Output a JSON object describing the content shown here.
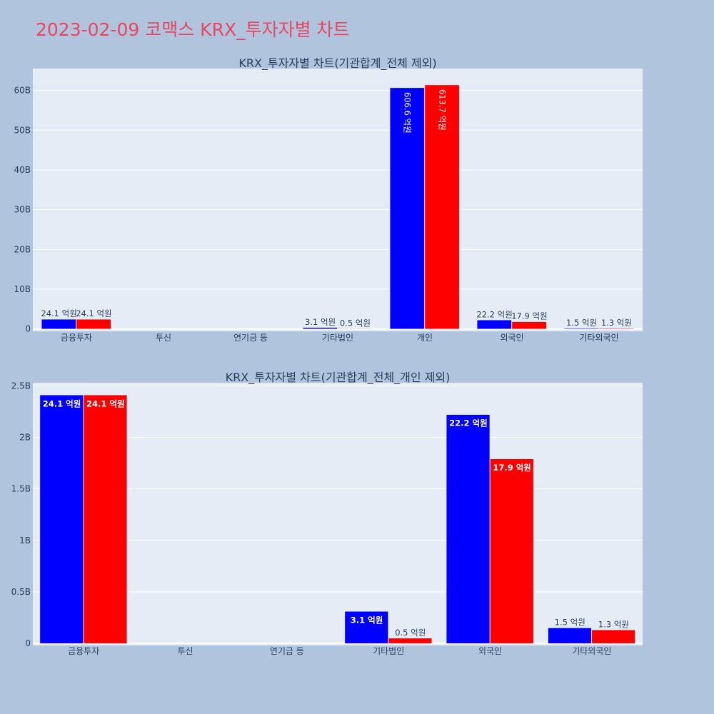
{
  "header": {
    "title": "2023-02-09 코맥스 KRX_투자자별 차트"
  },
  "colors": {
    "background": "#b0c4de",
    "plot_bg": "#e5ecf6",
    "series_a": "#0000ff",
    "series_b": "#ff0000",
    "title": "#e8485f"
  },
  "chart_data": [
    {
      "type": "bar",
      "title": "KRX_투자자별 차트(기관합계_전체 제외)",
      "categories": [
        "금융투자",
        "투신",
        "연기금 등",
        "기타법인",
        "개인",
        "외국인",
        "기타외국인"
      ],
      "ylim": [
        -0.6,
        65.5
      ],
      "yticks": [
        0,
        10,
        20,
        30,
        40,
        50,
        60
      ],
      "ytick_labels": [
        "0",
        "10B",
        "20B",
        "30B",
        "40B",
        "50B",
        "60B"
      ],
      "grid": true,
      "series": [
        {
          "color": "#0000ff",
          "values": [
            2.41,
            0,
            0,
            0.31,
            60.66,
            2.22,
            0.15
          ],
          "labels": [
            "24.1 억원",
            "",
            "",
            "3.1 억원",
            "606.6 억원",
            "22.2 억원",
            "1.5 억원"
          ]
        },
        {
          "color": "#ff0000",
          "values": [
            2.41,
            0,
            0,
            0.05,
            61.37,
            1.79,
            0.13
          ],
          "labels": [
            "24.1 억원",
            "",
            "",
            "0.5 억원",
            "613.7 억원",
            "17.9 억원",
            "1.3 억원"
          ]
        }
      ]
    },
    {
      "type": "bar",
      "title": "KRX_투자자별 차트(기관합계_전체_개인 제외)",
      "categories": [
        "금융투자",
        "투신",
        "연기금 등",
        "기타법인",
        "외국인",
        "기타외국인"
      ],
      "ylim": [
        -0.02,
        2.53
      ],
      "yticks": [
        0,
        0.5,
        1,
        1.5,
        2,
        2.5
      ],
      "ytick_labels": [
        "0",
        "0.5B",
        "1B",
        "1.5B",
        "2B",
        "2.5B"
      ],
      "grid": true,
      "series": [
        {
          "color": "#0000ff",
          "values": [
            2.41,
            0,
            0,
            0.31,
            2.22,
            0.15
          ],
          "labels": [
            "24.1 억원",
            "",
            "",
            "3.1 억원",
            "22.2 억원",
            "1.5 억원"
          ]
        },
        {
          "color": "#ff0000",
          "values": [
            2.41,
            0,
            0,
            0.05,
            1.79,
            0.13
          ],
          "labels": [
            "24.1 억원",
            "",
            "",
            "0.5 억원",
            "17.9 억원",
            "1.3 억원"
          ]
        }
      ]
    }
  ]
}
